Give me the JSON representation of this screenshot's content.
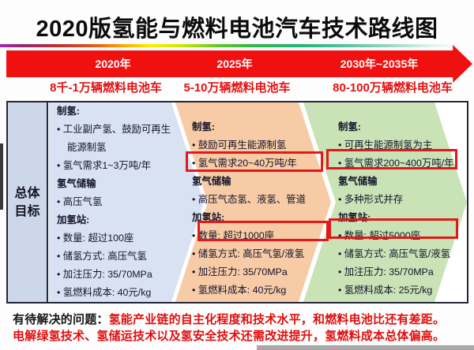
{
  "title": "2020版氢能与燃料电池汽车技术路线图",
  "timeline": {
    "years": [
      "2020年",
      "2025年",
      "2030年~2035年"
    ]
  },
  "milestones": [
    "8千-1万辆燃料电池车",
    "5-10万辆燃料电池车",
    "80-100万辆燃料电池车"
  ],
  "sidebar": {
    "label_line1": "总体",
    "label_line2": "目标"
  },
  "panels": [
    {
      "period": "2020年",
      "lines": [
        "制氢:",
        "• 工业副产氢、鼓励可再生",
        "能源制氢",
        "• 氢气需求1~3万吨/年",
        "氢气储输",
        "• 高压气氢",
        "加氢站:",
        "• 数量: 超过100座",
        "• 储氢方式: 高压气氢",
        "• 加注压力: 35/70MPa",
        "• 氢燃料成本: 40元/kg"
      ]
    },
    {
      "period": "2025年",
      "lines": [
        "制氢:",
        "• 鼓励可再生能源制氢",
        "• 氢气需求20~40万吨/年",
        "氢气储输",
        "• 高压气态氢、液氢、管道",
        "加氢站:",
        "• 数量: 超过1000座",
        "• 储氢方式: 高压气氢/液氢",
        "• 加注压力: 35/70MPa",
        "• 氢燃料成本: 40元/kg"
      ]
    },
    {
      "period": "2030年~2035年",
      "lines": [
        "制氢:",
        "• 可再生能源制氢为主",
        "• 氢气需求200~400万吨/年",
        "氢气储输",
        "• 多种形式并存",
        "加氢站:",
        "• 数量: 超过5000座",
        "• 储氢方式: 高压气氢/液氢",
        "• 加注压力: 35/70MPa",
        "• 氢燃料成本: 25元/kg"
      ]
    }
  ],
  "highlighted_values": [
    "氢气需求20~40万吨/年",
    "氢气需求200~400万吨/年",
    "数量: 超过1000座",
    "数量: 超过5000座"
  ],
  "issues": {
    "label": "有待解决的问题：",
    "line1": "氢能产业链的自主化程度和技术水平，和燃料电池比还有差距。",
    "line2": "电解绿氢技术、氢储运技术以及氢安全技术还需改进提升，氢燃料成本总体偏高。"
  },
  "colors": {
    "arrow_red": "#f01010",
    "milestone_red": "#e31212",
    "highlight_box_red": "#e41818",
    "panel_2020_bg": "#d9e2f2",
    "panel_2025_bg": "#f7cba6",
    "panel_2030_bg": "#c9e3b6",
    "sidebar_bg": "#ccd7ea",
    "border_dark": "#26263a"
  }
}
